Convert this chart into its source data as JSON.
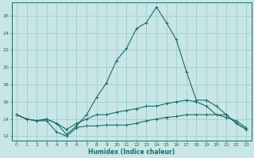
{
  "xlabel": "Humidex (Indice chaleur)",
  "background_color": "#c8e6e6",
  "grid_color": "#9ecece",
  "line_color": "#1a6b6b",
  "xlim": [
    -0.5,
    23.5
  ],
  "ylim": [
    11.5,
    27.5
  ],
  "xticks": [
    0,
    1,
    2,
    3,
    4,
    5,
    6,
    7,
    8,
    9,
    10,
    11,
    12,
    13,
    14,
    15,
    16,
    17,
    18,
    19,
    20,
    21,
    22,
    23
  ],
  "yticks": [
    12,
    14,
    16,
    18,
    20,
    22,
    24,
    26
  ],
  "line1_x": [
    0,
    1,
    2,
    3,
    4,
    5,
    6,
    7,
    8,
    9,
    10,
    11,
    12,
    13,
    14,
    15,
    16,
    17,
    18,
    19,
    20,
    21,
    22,
    23
  ],
  "line1_y": [
    14.5,
    14.0,
    13.8,
    13.8,
    12.5,
    12.0,
    13.0,
    13.2,
    13.2,
    13.3,
    13.3,
    13.3,
    13.5,
    13.8,
    14.0,
    14.2,
    14.3,
    14.5,
    14.5,
    14.5,
    14.5,
    14.2,
    13.8,
    13.0
  ],
  "line2_x": [
    0,
    1,
    2,
    3,
    4,
    5,
    6,
    7,
    8,
    9,
    10,
    11,
    12,
    13,
    14,
    15,
    16,
    17,
    18,
    19,
    20,
    21,
    22,
    23
  ],
  "line2_y": [
    14.5,
    14.0,
    13.8,
    14.0,
    13.5,
    12.8,
    13.5,
    14.0,
    14.5,
    14.5,
    14.8,
    15.0,
    15.2,
    15.5,
    15.5,
    15.8,
    16.0,
    16.2,
    16.0,
    15.5,
    14.5,
    14.5,
    13.5,
    12.8
  ],
  "line3_x": [
    0,
    1,
    2,
    3,
    4,
    5,
    6,
    7,
    8,
    9,
    10,
    11,
    12,
    13,
    14,
    15,
    16,
    17,
    18,
    19,
    20,
    21,
    22,
    23
  ],
  "line3_y": [
    14.5,
    14.0,
    13.8,
    14.0,
    13.5,
    12.2,
    13.2,
    14.5,
    16.5,
    18.2,
    20.8,
    22.2,
    24.5,
    25.2,
    27.0,
    25.2,
    23.2,
    19.5,
    16.2,
    16.2,
    15.5,
    14.5,
    13.5,
    12.8
  ]
}
